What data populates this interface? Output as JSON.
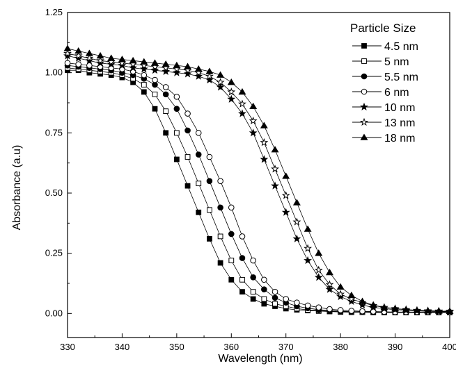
{
  "chart_data": {
    "type": "line",
    "title": "",
    "xlabel": "Wavelength (nm)",
    "ylabel": "Absorbance (a.u)",
    "xlim": [
      330,
      400
    ],
    "ylim": [
      -0.1,
      1.25
    ],
    "x_ticks": [
      330,
      340,
      350,
      360,
      370,
      380,
      390,
      400
    ],
    "x_tick_labels": [
      "330",
      "340",
      "350",
      "360",
      "370",
      "380",
      "390",
      "400"
    ],
    "y_ticks": [
      0,
      0.25,
      0.5,
      0.75,
      1.0,
      1.25
    ],
    "y_tick_labels": [
      "0.00",
      "0.25",
      "0.50",
      "0.75",
      "1.00",
      "1.25"
    ],
    "grid": false,
    "legend": {
      "title": "Particle Size",
      "placement": "top-right"
    },
    "x": [
      330,
      332,
      334,
      336,
      338,
      340,
      342,
      344,
      346,
      348,
      350,
      352,
      354,
      356,
      358,
      360,
      362,
      364,
      366,
      368,
      370,
      372,
      374,
      376,
      378,
      380,
      382,
      384,
      386,
      388,
      390,
      392,
      394,
      396,
      398,
      400
    ],
    "series": [
      {
        "name": "4.5 nm",
        "marker": "square-filled",
        "values": [
          1.01,
          1.01,
          1.0,
          0.995,
          0.99,
          0.98,
          0.96,
          0.92,
          0.85,
          0.75,
          0.64,
          0.53,
          0.42,
          0.31,
          0.21,
          0.14,
          0.09,
          0.06,
          0.04,
          0.03,
          0.02,
          0.015,
          0.012,
          0.01,
          0.008,
          0.006,
          0.005,
          0.005,
          0.004,
          0.004,
          0.004,
          0.004,
          0.004,
          0.004,
          0.004,
          0.004
        ]
      },
      {
        "name": "5 nm",
        "marker": "square-open",
        "values": [
          1.02,
          1.015,
          1.01,
          1.005,
          1.0,
          0.99,
          0.975,
          0.95,
          0.91,
          0.84,
          0.75,
          0.65,
          0.54,
          0.43,
          0.32,
          0.22,
          0.14,
          0.09,
          0.06,
          0.04,
          0.03,
          0.02,
          0.015,
          0.012,
          0.01,
          0.008,
          0.006,
          0.005,
          0.005,
          0.005,
          0.004,
          0.004,
          0.004,
          0.004,
          0.004,
          0.004
        ]
      },
      {
        "name": "5.5 nm",
        "marker": "circle-filled",
        "values": [
          1.03,
          1.025,
          1.02,
          1.015,
          1.01,
          1.0,
          0.99,
          0.975,
          0.95,
          0.91,
          0.85,
          0.76,
          0.66,
          0.55,
          0.44,
          0.33,
          0.23,
          0.15,
          0.1,
          0.065,
          0.045,
          0.03,
          0.022,
          0.016,
          0.012,
          0.01,
          0.008,
          0.007,
          0.006,
          0.006,
          0.005,
          0.005,
          0.005,
          0.005,
          0.005,
          0.005
        ]
      },
      {
        "name": "6 nm",
        "marker": "circle-open",
        "values": [
          1.04,
          1.035,
          1.03,
          1.025,
          1.02,
          1.015,
          1.005,
          0.99,
          0.97,
          0.94,
          0.9,
          0.83,
          0.75,
          0.65,
          0.55,
          0.44,
          0.32,
          0.22,
          0.14,
          0.09,
          0.06,
          0.045,
          0.033,
          0.025,
          0.018,
          0.014,
          0.011,
          0.009,
          0.008,
          0.007,
          0.006,
          0.006,
          0.006,
          0.006,
          0.006,
          0.006
        ]
      },
      {
        "name": "10 nm",
        "marker": "star-filled",
        "values": [
          1.07,
          1.06,
          1.05,
          1.04,
          1.035,
          1.03,
          1.02,
          1.015,
          1.01,
          1.005,
          1.0,
          0.995,
          0.985,
          0.97,
          0.94,
          0.89,
          0.83,
          0.75,
          0.64,
          0.53,
          0.42,
          0.31,
          0.22,
          0.15,
          0.1,
          0.07,
          0.05,
          0.035,
          0.025,
          0.02,
          0.016,
          0.013,
          0.011,
          0.009,
          0.008,
          0.007
        ]
      },
      {
        "name": "13 nm",
        "marker": "star-open",
        "values": [
          1.08,
          1.07,
          1.06,
          1.05,
          1.045,
          1.04,
          1.035,
          1.03,
          1.025,
          1.02,
          1.015,
          1.01,
          1.0,
          0.985,
          0.96,
          0.92,
          0.87,
          0.8,
          0.71,
          0.6,
          0.49,
          0.38,
          0.27,
          0.18,
          0.12,
          0.08,
          0.06,
          0.045,
          0.033,
          0.025,
          0.02,
          0.016,
          0.013,
          0.011,
          0.01,
          0.009
        ]
      },
      {
        "name": "18 nm",
        "marker": "triangle-filled",
        "values": [
          1.1,
          1.09,
          1.08,
          1.07,
          1.06,
          1.055,
          1.05,
          1.045,
          1.04,
          1.035,
          1.03,
          1.025,
          1.015,
          1.005,
          0.99,
          0.96,
          0.92,
          0.86,
          0.78,
          0.68,
          0.57,
          0.46,
          0.35,
          0.25,
          0.17,
          0.11,
          0.075,
          0.05,
          0.035,
          0.025,
          0.02,
          0.016,
          0.013,
          0.011,
          0.01,
          0.009
        ]
      }
    ]
  }
}
